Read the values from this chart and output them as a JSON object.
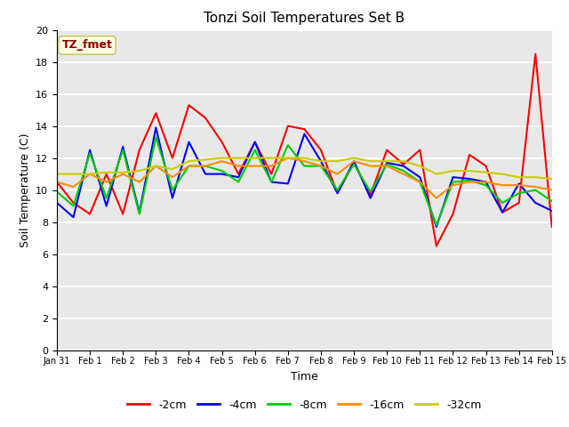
{
  "title": "Tonzi Soil Temperatures Set B",
  "xlabel": "Time",
  "ylabel": "Soil Temperature (C)",
  "ylim": [
    0,
    20
  ],
  "yticks": [
    0,
    2,
    4,
    6,
    8,
    10,
    12,
    14,
    16,
    18,
    20
  ],
  "background_color": "#e8e8e8",
  "annotation_text": "TZ_fmet",
  "annotation_color": "#8b0000",
  "annotation_bg": "#ffffe0",
  "annotation_border": "#c8c870",
  "series": {
    "-2cm": {
      "color": "#ff0000",
      "x": [
        0,
        0.5,
        1.0,
        1.5,
        2.0,
        2.5,
        3.0,
        3.5,
        4.0,
        4.5,
        5.0,
        5.5,
        6.0,
        6.5,
        7.0,
        7.5,
        8.0,
        8.5,
        9.0,
        9.5,
        10.0,
        10.5,
        11.0,
        11.5,
        12.0,
        12.5,
        13.0,
        13.5,
        14.0,
        14.5,
        15.0
      ],
      "y": [
        10.5,
        9.2,
        8.5,
        11.0,
        8.5,
        12.5,
        14.8,
        12.0,
        15.3,
        14.5,
        13.0,
        11.0,
        13.0,
        11.0,
        14.0,
        13.8,
        12.5,
        9.8,
        11.7,
        9.7,
        12.5,
        11.6,
        12.5,
        6.5,
        8.5,
        12.2,
        11.5,
        8.6,
        9.2,
        18.5,
        7.7
      ]
    },
    "-4cm": {
      "color": "#0000ff",
      "x": [
        0,
        0.5,
        1.0,
        1.5,
        2.0,
        2.5,
        3.0,
        3.5,
        4.0,
        4.5,
        5.0,
        5.5,
        6.0,
        6.5,
        7.0,
        7.5,
        8.0,
        8.5,
        9.0,
        9.5,
        10.0,
        10.5,
        11.0,
        11.5,
        12.0,
        12.5,
        13.0,
        13.5,
        14.0,
        14.5,
        15.0
      ],
      "y": [
        9.2,
        8.3,
        12.5,
        9.0,
        12.7,
        8.6,
        13.9,
        9.5,
        13.0,
        11.0,
        11.0,
        10.8,
        13.0,
        10.5,
        10.4,
        13.5,
        11.8,
        9.8,
        11.8,
        9.5,
        11.7,
        11.5,
        10.8,
        7.7,
        10.8,
        10.7,
        10.5,
        8.6,
        10.4,
        9.2,
        8.7
      ]
    },
    "-8cm": {
      "color": "#00cc00",
      "x": [
        0,
        0.5,
        1.0,
        1.5,
        2.0,
        2.5,
        3.0,
        3.5,
        4.0,
        4.5,
        5.0,
        5.5,
        6.0,
        6.5,
        7.0,
        7.5,
        8.0,
        8.5,
        9.0,
        9.5,
        10.0,
        10.5,
        11.0,
        11.5,
        12.0,
        12.5,
        13.0,
        13.5,
        14.0,
        14.5,
        15.0
      ],
      "y": [
        9.9,
        9.0,
        12.3,
        9.5,
        12.5,
        8.5,
        13.3,
        10.0,
        11.5,
        11.5,
        11.2,
        10.5,
        12.5,
        10.5,
        12.8,
        11.5,
        11.5,
        10.0,
        11.6,
        9.9,
        11.6,
        11.2,
        10.5,
        7.8,
        10.5,
        10.6,
        10.3,
        9.2,
        9.8,
        10.0,
        9.3
      ]
    },
    "-16cm": {
      "color": "#ff8c00",
      "x": [
        0,
        0.5,
        1.0,
        1.5,
        2.0,
        2.5,
        3.0,
        3.5,
        4.0,
        4.5,
        5.0,
        5.5,
        6.0,
        6.5,
        7.0,
        7.5,
        8.0,
        8.5,
        9.0,
        9.5,
        10.0,
        10.5,
        11.0,
        11.5,
        12.0,
        12.5,
        13.0,
        13.5,
        14.0,
        14.5,
        15.0
      ],
      "y": [
        10.5,
        10.2,
        11.0,
        10.5,
        11.0,
        10.5,
        11.5,
        10.8,
        11.5,
        11.5,
        11.8,
        11.5,
        11.5,
        11.5,
        12.0,
        11.8,
        11.5,
        11.0,
        11.8,
        11.5,
        11.5,
        11.0,
        10.5,
        9.5,
        10.3,
        10.5,
        10.5,
        10.3,
        10.3,
        10.2,
        10.0
      ]
    },
    "-32cm": {
      "color": "#cccc00",
      "x": [
        0,
        0.5,
        1.0,
        1.5,
        2.0,
        2.5,
        3.0,
        3.5,
        4.0,
        4.5,
        5.0,
        5.5,
        6.0,
        6.5,
        7.0,
        7.5,
        8.0,
        8.5,
        9.0,
        9.5,
        10.0,
        10.5,
        11.0,
        11.5,
        12.0,
        12.5,
        13.0,
        13.5,
        14.0,
        14.5,
        15.0
      ],
      "y": [
        11.0,
        11.0,
        11.0,
        11.1,
        11.1,
        11.2,
        11.5,
        11.3,
        11.8,
        11.9,
        12.0,
        12.0,
        12.0,
        12.0,
        12.0,
        12.0,
        11.8,
        11.8,
        12.0,
        11.8,
        11.8,
        11.8,
        11.5,
        11.0,
        11.2,
        11.2,
        11.1,
        11.0,
        10.8,
        10.8,
        10.7
      ]
    }
  },
  "xtick_positions": [
    0,
    1,
    2,
    3,
    4,
    5,
    6,
    7,
    8,
    9,
    10,
    11,
    12,
    13,
    14,
    15
  ],
  "xtick_labels": [
    "Jan 31",
    "Feb 1",
    "Feb 2",
    "Feb 3",
    "Feb 4",
    "Feb 5",
    "Feb 6",
    "Feb 7",
    "Feb 8",
    "Feb 9",
    "Feb 10",
    "Feb 11",
    "Feb 12",
    "Feb 13",
    "Feb 14",
    "Feb 15"
  ],
  "legend_order": [
    "-2cm",
    "-4cm",
    "-8cm",
    "-16cm",
    "-32cm"
  ]
}
